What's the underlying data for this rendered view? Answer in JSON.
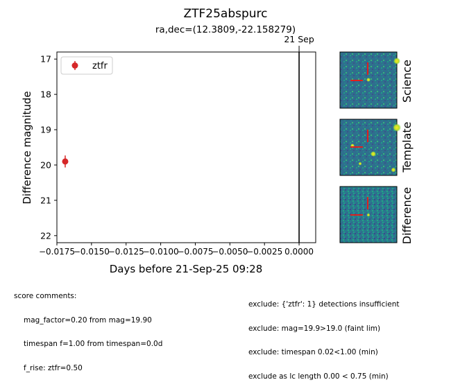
{
  "title": "ZTF25abspurc",
  "subtitle": "ra,dec=(12.3809,-22.158279)",
  "chart_data": {
    "type": "scatter",
    "xlabel": "Days before 21-Sep-25 09:28",
    "ylabel": "Difference magnitude",
    "xlim": [
      -0.0175,
      0.0012
    ],
    "ylim": [
      22.2,
      16.8
    ],
    "y_inverted": true,
    "xticks": [
      -0.0175,
      -0.015,
      -0.0125,
      -0.01,
      -0.0075,
      -0.005,
      -0.0025,
      0.0
    ],
    "xtick_labels": [
      "−0.0175",
      "−0.0150",
      "−0.0125",
      "−0.0100",
      "−0.0075",
      "−0.0050",
      "−0.0025",
      "0.0000"
    ],
    "yticks": [
      17,
      18,
      19,
      20,
      21,
      22
    ],
    "ytick_labels": [
      "17",
      "18",
      "19",
      "20",
      "21",
      "22"
    ],
    "series": [
      {
        "name": "ztfr",
        "color": "#d62728",
        "points": [
          {
            "x": -0.0169,
            "y": 19.9,
            "yerr": 0.17
          }
        ]
      }
    ],
    "vlines": [
      {
        "x": 0.0,
        "label": "21 Sep",
        "color": "#000000"
      }
    ],
    "legend": {
      "location": "top-left",
      "entries": [
        "ztfr"
      ]
    },
    "grid": false
  },
  "cutouts": [
    {
      "label": "Science"
    },
    {
      "label": "Template"
    },
    {
      "label": "Difference"
    }
  ],
  "score_comments": {
    "header": "score comments:",
    "lines": [
      "mag_factor=0.20 from mag=19.90",
      "timespan f=1.00 from timespan=0.0d",
      "f_rise: ztfr=0.50"
    ]
  },
  "exclusions": [
    "exclude: {'ztfr': 1} detections insufficient",
    "exclude: mag=19.9>19.0 (faint lim)",
    "exclude: timespan 0.02<1.00 (min)",
    "exclude as lc length 0.00 < 0.75 (min)"
  ],
  "colors": {
    "marker": "#d62728",
    "crosshair": "#e0201c",
    "axes": "#000000"
  }
}
